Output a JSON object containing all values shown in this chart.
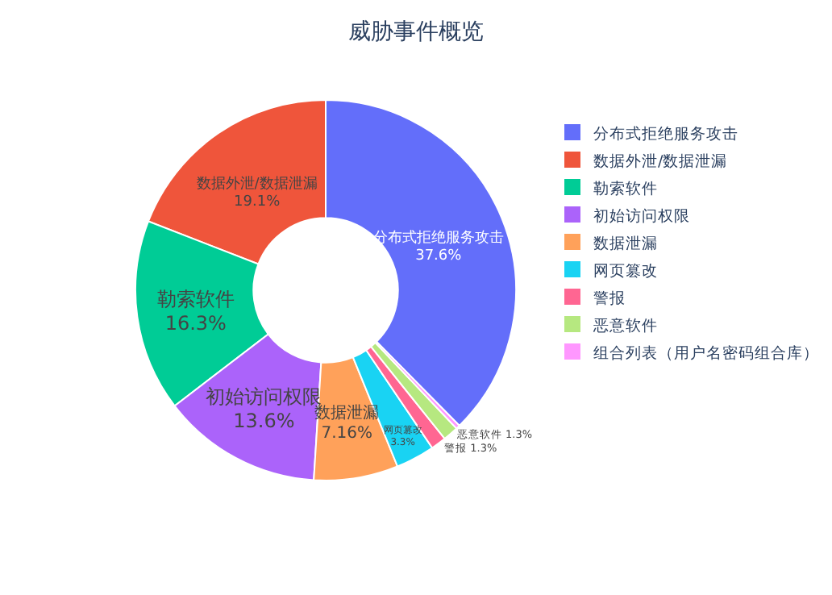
{
  "chart_data": {
    "type": "donut",
    "title": "威胁事件概览",
    "categories": [
      "分布式拒绝服务攻击",
      "数据外泄/数据泄漏",
      "勒索软件",
      "初始访问权限",
      "数据泄漏",
      "网页篡改",
      "警报",
      "恶意软件",
      "组合列表（用户名密码组合库）"
    ],
    "values": [
      37.6,
      19.1,
      16.3,
      13.6,
      7.16,
      3.3,
      1.3,
      1.3,
      0.34
    ],
    "colors": [
      "#636efa",
      "#ef553b",
      "#00cc96",
      "#ab63fa",
      "#ffa15a",
      "#19d3f3",
      "#ff6692",
      "#b6e880",
      "#ff97ff"
    ],
    "value_labels": [
      "37.6%",
      "19.1%",
      "16.3%",
      "13.6%",
      "7.16%",
      "3.3%",
      "1.3%",
      "1.3%",
      null
    ],
    "legend": "right"
  }
}
